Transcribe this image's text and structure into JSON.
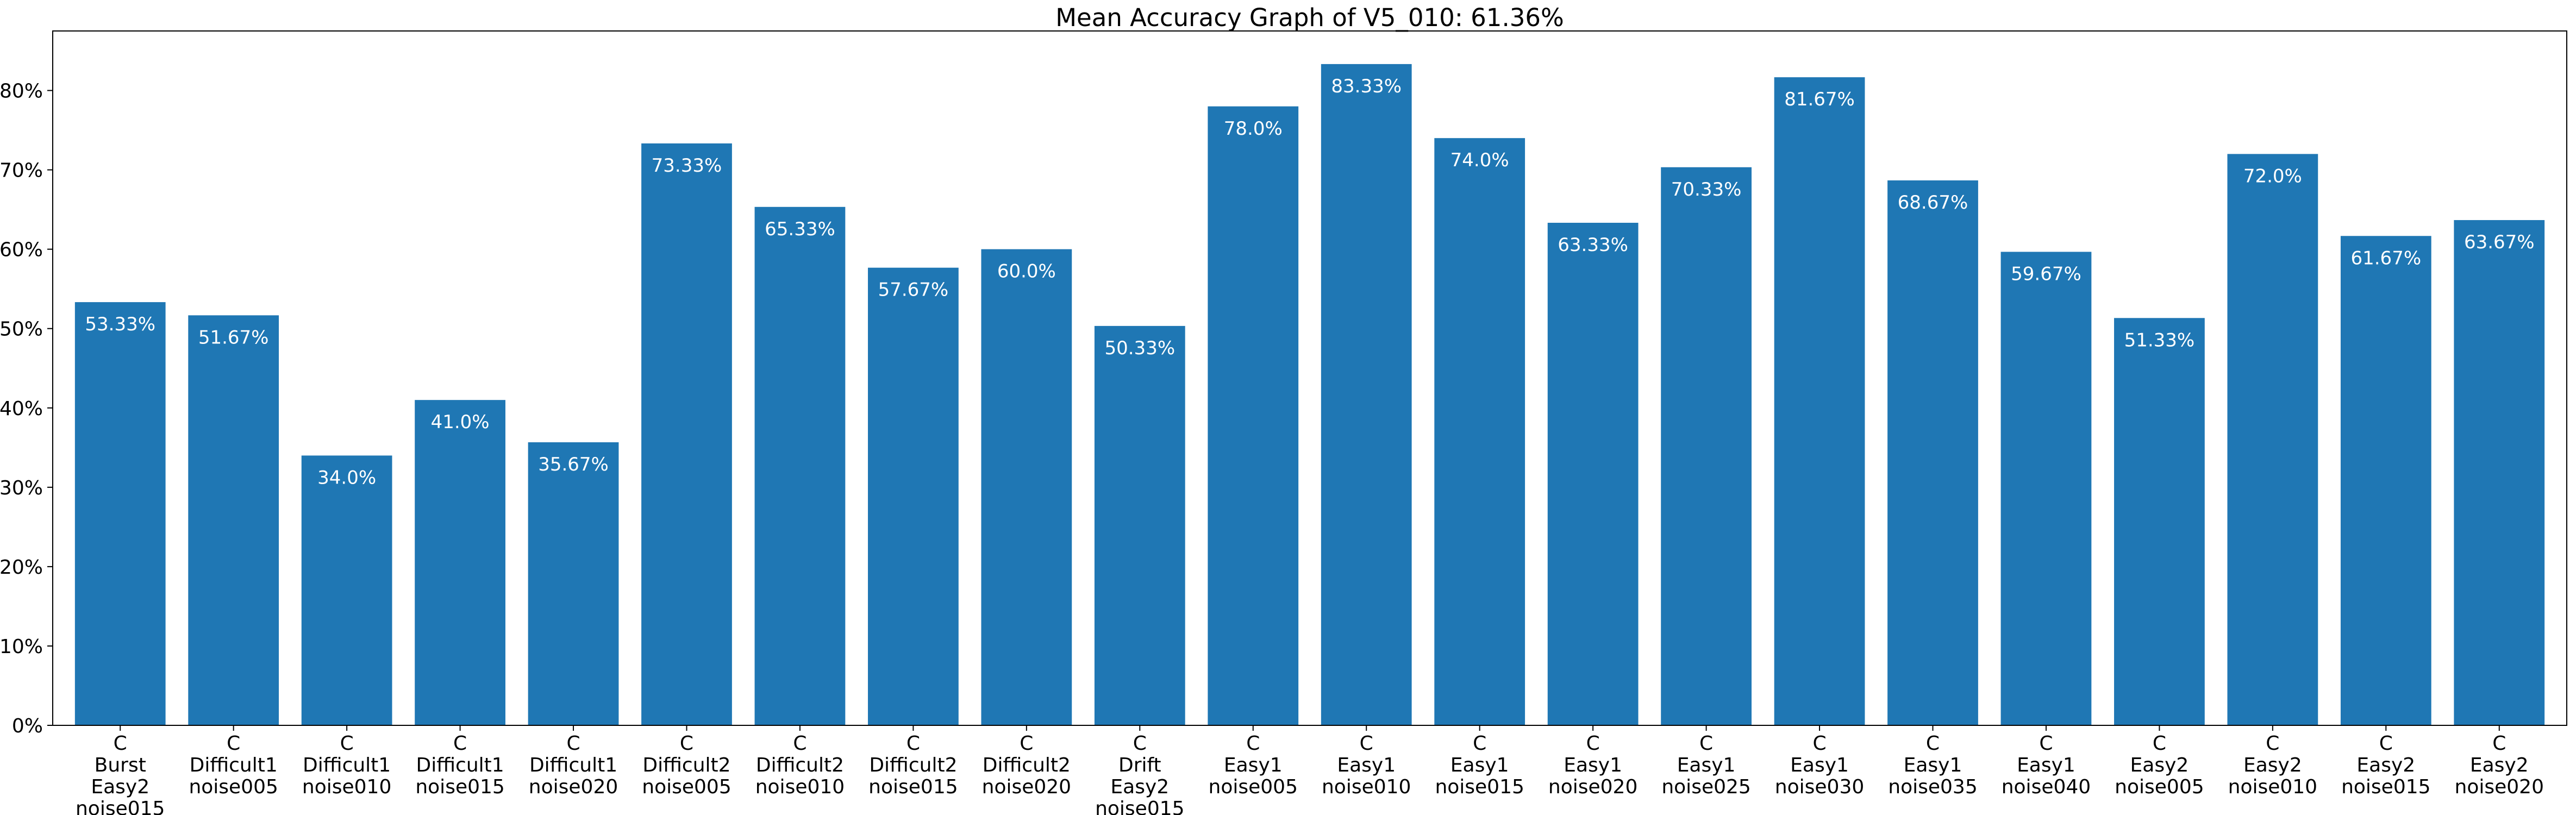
{
  "chart_data": {
    "type": "bar",
    "title": "Mean Accuracy Graph of V5_010: 61.36%",
    "xlabel": "",
    "ylabel": "",
    "ylim": [
      0,
      87.5
    ],
    "yticks": [
      "0%",
      "10%",
      "20%",
      "30%",
      "40%",
      "50%",
      "60%",
      "70%",
      "80%"
    ],
    "bar_color": "#1f77b4",
    "label_color": "#ffffff",
    "categories": [
      "C\nBurst\nEasy2\nnoise015",
      "C\nDifficult1\nnoise005",
      "C\nDifficult1\nnoise010",
      "C\nDifficult1\nnoise015",
      "C\nDifficult1\nnoise020",
      "C\nDifficult2\nnoise005",
      "C\nDifficult2\nnoise010",
      "C\nDifficult2\nnoise015",
      "C\nDifficult2\nnoise020",
      "C\nDrift\nEasy2\nnoise015",
      "C\nEasy1\nnoise005",
      "C\nEasy1\nnoise010",
      "C\nEasy1\nnoise015",
      "C\nEasy1\nnoise020",
      "C\nEasy1\nnoise025",
      "C\nEasy1\nnoise030",
      "C\nEasy1\nnoise035",
      "C\nEasy1\nnoise040",
      "C\nEasy2\nnoise005",
      "C\nEasy2\nnoise010",
      "C\nEasy2\nnoise015",
      "C\nEasy2\nnoise020"
    ],
    "values": [
      53.33,
      51.67,
      34.0,
      41.0,
      35.67,
      73.33,
      65.33,
      57.67,
      60.0,
      50.33,
      78.0,
      83.33,
      74.0,
      63.33,
      70.33,
      81.67,
      68.67,
      59.67,
      51.33,
      72.0,
      61.67,
      63.67
    ],
    "data_labels": [
      "53.33%",
      "51.67%",
      "34.0%",
      "41.0%",
      "35.67%",
      "73.33%",
      "65.33%",
      "57.67%",
      "60.0%",
      "50.33%",
      "78.0%",
      "83.33%",
      "74.0%",
      "63.33%",
      "70.33%",
      "81.67%",
      "68.67%",
      "59.67%",
      "51.33%",
      "72.0%",
      "61.67%",
      "63.67%"
    ],
    "grid": false,
    "legend": "none"
  }
}
